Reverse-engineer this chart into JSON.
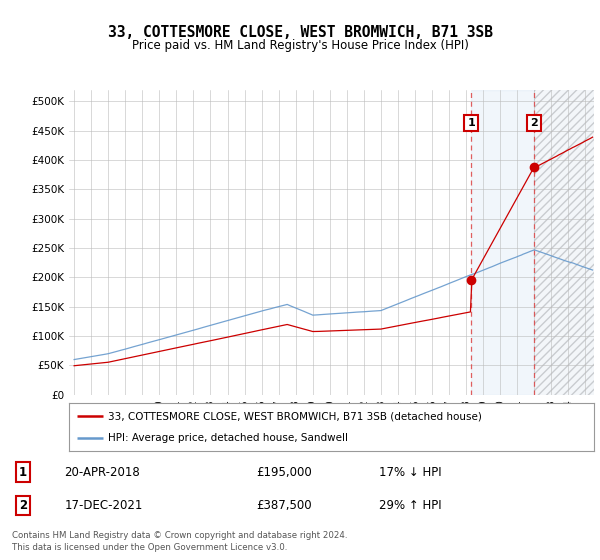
{
  "title": "33, COTTESMORE CLOSE, WEST BROMWICH, B71 3SB",
  "subtitle": "Price paid vs. HM Land Registry's House Price Index (HPI)",
  "ylim": [
    0,
    520000
  ],
  "yticks": [
    0,
    50000,
    100000,
    150000,
    200000,
    250000,
    300000,
    350000,
    400000,
    450000,
    500000
  ],
  "ytick_labels": [
    "£0",
    "£50K",
    "£100K",
    "£150K",
    "£200K",
    "£250K",
    "£300K",
    "£350K",
    "£400K",
    "£450K",
    "£500K"
  ],
  "xlim_start": 1994.7,
  "xlim_end": 2025.5,
  "sale1_year": 2018.3,
  "sale1_price": 195000,
  "sale1_label": "1",
  "sale1_date": "20-APR-2018",
  "sale1_price_str": "£195,000",
  "sale1_pct": "17% ↓ HPI",
  "sale2_year": 2021.96,
  "sale2_price": 387500,
  "sale2_label": "2",
  "sale2_date": "17-DEC-2021",
  "sale2_price_str": "£387,500",
  "sale2_pct": "29% ↑ HPI",
  "property_color": "#cc0000",
  "hpi_color": "#6699cc",
  "legend_line1": "33, COTTESMORE CLOSE, WEST BROMWICH, B71 3SB (detached house)",
  "legend_line2": "HPI: Average price, detached house, Sandwell",
  "footer": "Contains HM Land Registry data © Crown copyright and database right 2024.\nThis data is licensed under the Open Government Licence v3.0.",
  "background_color": "#ffffff",
  "grid_color": "#bbbbbb",
  "shading_color": "#ddeeff"
}
